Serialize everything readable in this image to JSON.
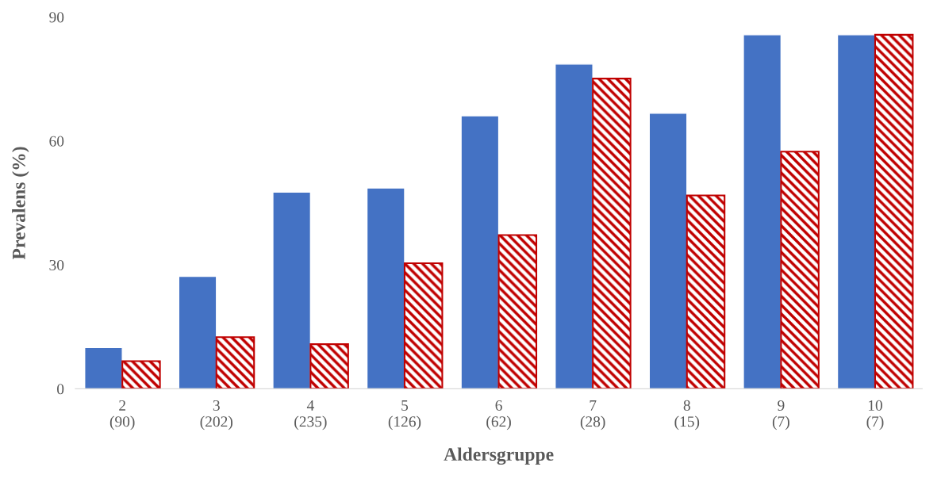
{
  "chart_data": {
    "type": "bar",
    "xlabel": "Aldersgruppe",
    "ylabel": "Prevalens (%)",
    "categories": [
      "2\n(90)",
      "3\n(202)",
      "4\n(235)",
      "5\n(126)",
      "6\n(62)",
      "7\n(28)",
      "8\n(15)",
      "9\n(7)",
      "10\n(7)"
    ],
    "series": [
      {
        "color": "#4472c4",
        "values": [
          10.0,
          27.2,
          47.6,
          48.6,
          66.1,
          78.6,
          66.7,
          85.7,
          85.7
        ]
      },
      {
        "color": "#c00000",
        "values": [
          6.7,
          12.5,
          10.8,
          30.4,
          37.2,
          75.1,
          46.8,
          57.4,
          85.7
        ]
      }
    ],
    "ylim": [
      0,
      90
    ],
    "yticks": [
      0,
      30,
      60,
      90
    ],
    "grid": false,
    "legend": false
  }
}
